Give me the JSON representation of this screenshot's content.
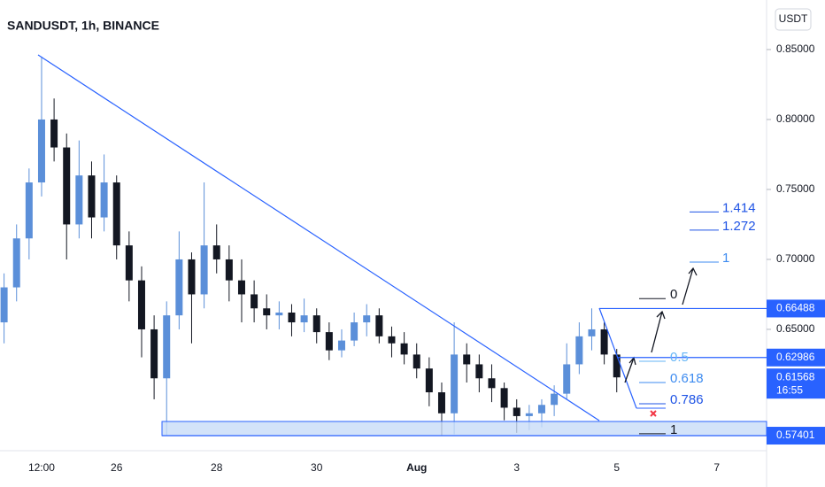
{
  "chart_data": {
    "type": "candlestick",
    "title": "SANDUSDT, 1h, BINANCE",
    "currency": "USDT",
    "categories": [
      null,
      null,
      null,
      "12:00",
      null,
      null,
      null,
      null,
      null,
      "26",
      null,
      null,
      null,
      null,
      null,
      null,
      null,
      "28",
      null,
      null,
      null,
      null,
      null,
      null,
      null,
      "30",
      null,
      null,
      null,
      null,
      null,
      null,
      null,
      "Aug",
      null,
      null,
      null,
      null,
      null,
      null,
      null,
      "3",
      null,
      null,
      null,
      null,
      null,
      null,
      null,
      "5",
      null,
      null,
      null,
      null,
      null,
      null,
      null,
      "7",
      null,
      null,
      null
    ],
    "open": [
      0.655,
      0.68,
      0.715,
      0.755,
      0.8,
      0.78,
      0.725,
      0.76,
      0.73,
      0.755,
      0.71,
      0.685,
      0.65,
      0.615,
      0.66,
      0.7,
      0.675,
      0.71,
      0.7,
      0.685,
      0.675,
      0.665,
      0.66,
      0.662,
      0.655,
      0.66,
      0.648,
      0.635,
      0.642,
      0.655,
      0.66,
      0.645,
      0.64,
      0.632,
      0.622,
      0.605,
      0.59,
      0.632,
      0.625,
      0.615,
      0.608,
      0.594,
      0.588,
      0.59,
      0.596,
      0.604,
      0.625,
      0.645,
      0.65,
      0.632,
      null,
      null,
      null,
      null,
      null,
      null,
      null,
      null,
      null,
      null,
      null
    ],
    "high": [
      0.69,
      0.725,
      0.765,
      0.845,
      0.815,
      0.79,
      0.785,
      0.77,
      0.775,
      0.76,
      0.72,
      0.695,
      0.66,
      0.67,
      0.72,
      0.705,
      0.755,
      0.725,
      0.71,
      0.7,
      0.685,
      0.675,
      0.67,
      0.668,
      0.672,
      0.665,
      0.655,
      0.65,
      0.662,
      0.668,
      0.665,
      0.652,
      0.648,
      0.64,
      0.63,
      0.612,
      0.655,
      0.64,
      0.632,
      0.625,
      0.612,
      0.6,
      0.596,
      0.6,
      0.61,
      0.64,
      0.655,
      0.665,
      0.655,
      0.636,
      null,
      null,
      null,
      null,
      null,
      null,
      null,
      null,
      null,
      null,
      null
    ],
    "low": [
      0.64,
      0.67,
      0.7,
      0.745,
      0.77,
      0.7,
      0.715,
      0.715,
      0.72,
      0.7,
      0.67,
      0.63,
      0.6,
      0.574,
      0.65,
      0.64,
      0.665,
      0.69,
      0.67,
      0.655,
      0.655,
      0.65,
      0.65,
      0.645,
      0.648,
      0.64,
      0.628,
      0.63,
      0.638,
      0.645,
      0.64,
      0.63,
      0.625,
      0.615,
      0.595,
      0.574,
      0.575,
      0.612,
      0.605,
      0.598,
      0.585,
      0.576,
      0.578,
      0.58,
      0.588,
      0.6,
      0.618,
      0.635,
      0.625,
      0.605,
      null,
      null,
      null,
      null,
      null,
      null,
      null,
      null,
      null,
      null,
      null
    ],
    "close": [
      0.68,
      0.715,
      0.755,
      0.8,
      0.78,
      0.725,
      0.76,
      0.73,
      0.755,
      0.71,
      0.685,
      0.65,
      0.615,
      0.66,
      0.7,
      0.675,
      0.71,
      0.7,
      0.685,
      0.675,
      0.665,
      0.66,
      0.662,
      0.655,
      0.66,
      0.648,
      0.635,
      0.642,
      0.655,
      0.66,
      0.645,
      0.64,
      0.632,
      0.622,
      0.605,
      0.59,
      0.632,
      0.625,
      0.615,
      0.608,
      0.594,
      0.588,
      0.59,
      0.596,
      0.604,
      0.625,
      0.645,
      0.65,
      0.632,
      0.61568,
      null,
      null,
      null,
      null,
      null,
      null,
      null,
      null,
      null,
      null,
      null
    ],
    "up_color": "#5b8fd9",
    "down_color": "#131722",
    "ylim": [
      0.5639,
      0.8854
    ],
    "yticks": [
      {
        "value": 0.85,
        "label": "0.85000"
      },
      {
        "value": 0.8,
        "label": "0.80000"
      },
      {
        "value": 0.75,
        "label": "0.75000"
      },
      {
        "value": 0.7,
        "label": "0.70000"
      },
      {
        "value": 0.65,
        "label": "0.65000"
      }
    ],
    "price_badges": [
      {
        "value": 0.66488,
        "label": "0.66488"
      },
      {
        "value": 0.62986,
        "label": "0.62986"
      },
      {
        "value": 0.57401,
        "label": "0.57401"
      }
    ],
    "current_price": {
      "value": 0.61568,
      "label": "0.61568",
      "countdown": "16:55"
    },
    "fib_extension": [
      {
        "value": 0.7339,
        "label": "1.414",
        "color": "#1e53e5"
      },
      {
        "value": 0.7209,
        "label": "1.272",
        "color": "#1e53e5"
      },
      {
        "value": 0.6981,
        "label": "1",
        "color": "#3d8bf0"
      }
    ],
    "fib_retracement": [
      {
        "value": 0.672,
        "label": "0",
        "color": "#131722"
      },
      {
        "value": 0.6272,
        "label": "0.5",
        "color": "#64b5f6"
      },
      {
        "value": 0.612,
        "label": "0.618",
        "color": "#3d8bf0"
      },
      {
        "value": 0.5968,
        "label": "0.786",
        "color": "#1e53e5"
      },
      {
        "value": 0.5754,
        "label": "1",
        "color": "#131722"
      }
    ]
  }
}
